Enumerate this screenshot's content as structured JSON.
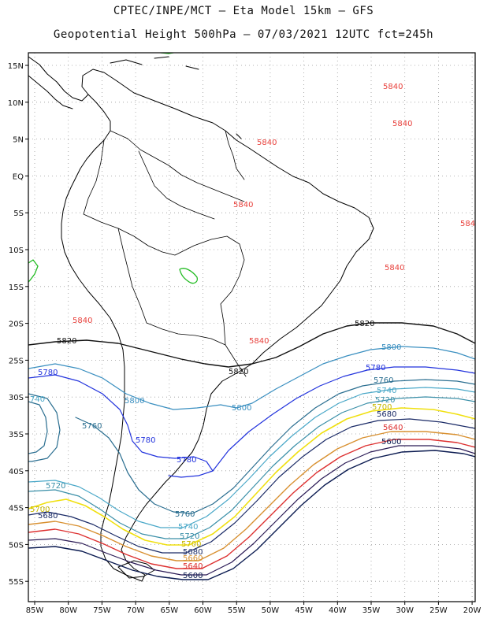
{
  "header": {
    "line1": "CPTEC/INPE/MCT –  Eta Model 15km – GFS",
    "line2": "Geopotential Height 500hPa – 07/03/2021 12UTC fct=245h"
  },
  "map": {
    "lat_labels": [
      "15N",
      "10N",
      "5N",
      "EQ",
      "5S",
      "10S",
      "15S",
      "20S",
      "25S",
      "30S",
      "35S",
      "40S",
      "45S",
      "50S",
      "55S"
    ],
    "lon_labels": [
      "85W",
      "80W",
      "75W",
      "70W",
      "65W",
      "60W",
      "55W",
      "50W",
      "45W",
      "40W",
      "35W",
      "30W",
      "25W",
      "20W"
    ],
    "colors": {
      "c5840": "#e8413c",
      "c5820": "#111111",
      "c5800": "#3a8fc0",
      "c5780": "#2233dd",
      "c5760": "#2a6e90",
      "c5740": "#4aa8c8",
      "c5720": "#3a8fa8",
      "c5700": "#f0e010",
      "c5680": "#1a2a66",
      "c5660": "#d89030",
      "c5640": "#dd3030",
      "c5600": "#0a1a50",
      "green": "#22bb22",
      "land": "#000000"
    },
    "contour_labels": [
      {
        "id": "l5840a",
        "text": "5840"
      },
      {
        "id": "l5840b",
        "text": "5840"
      },
      {
        "id": "l5840c",
        "text": "5840"
      },
      {
        "id": "l5840d",
        "text": "5840"
      },
      {
        "id": "l5840e",
        "text": "584"
      },
      {
        "id": "l5840f",
        "text": "5840"
      },
      {
        "id": "l5840g",
        "text": "5840"
      },
      {
        "id": "l5840h",
        "text": "5840"
      },
      {
        "id": "l5820a",
        "text": "5820"
      },
      {
        "id": "l5820b",
        "text": "5820"
      },
      {
        "id": "l5820c",
        "text": "5820"
      },
      {
        "id": "l5800a",
        "text": "5800"
      },
      {
        "id": "l5800b",
        "text": "5800"
      },
      {
        "id": "l5800c",
        "text": "5800"
      },
      {
        "id": "l5780a",
        "text": "5780"
      },
      {
        "id": "l5780b",
        "text": "5780"
      },
      {
        "id": "l5780c",
        "text": "5780"
      },
      {
        "id": "l5780d",
        "text": "5780"
      },
      {
        "id": "l5760a",
        "text": "5760"
      },
      {
        "id": "l5760b",
        "text": "5760"
      },
      {
        "id": "l5760c",
        "text": "5760"
      },
      {
        "id": "l5740a",
        "text": "5740"
      },
      {
        "id": "l5740b",
        "text": "5740"
      },
      {
        "id": "l5740c",
        "text": "740"
      },
      {
        "id": "l5720a",
        "text": "5720"
      },
      {
        "id": "l5720b",
        "text": "5720"
      },
      {
        "id": "l5720c",
        "text": "5720"
      },
      {
        "id": "l5700a",
        "text": "5700"
      },
      {
        "id": "l5700b",
        "text": "5700"
      },
      {
        "id": "l5700c",
        "text": "5700"
      },
      {
        "id": "l5680a",
        "text": "5680"
      },
      {
        "id": "l5680b",
        "text": "5680"
      },
      {
        "id": "l5680c",
        "text": "5680"
      },
      {
        "id": "l5660a",
        "text": "5660"
      },
      {
        "id": "l5640a",
        "text": "5640"
      },
      {
        "id": "l5640b",
        "text": "5640"
      },
      {
        "id": "l5600a",
        "text": "5600"
      },
      {
        "id": "l5600b",
        "text": "5600"
      }
    ]
  }
}
